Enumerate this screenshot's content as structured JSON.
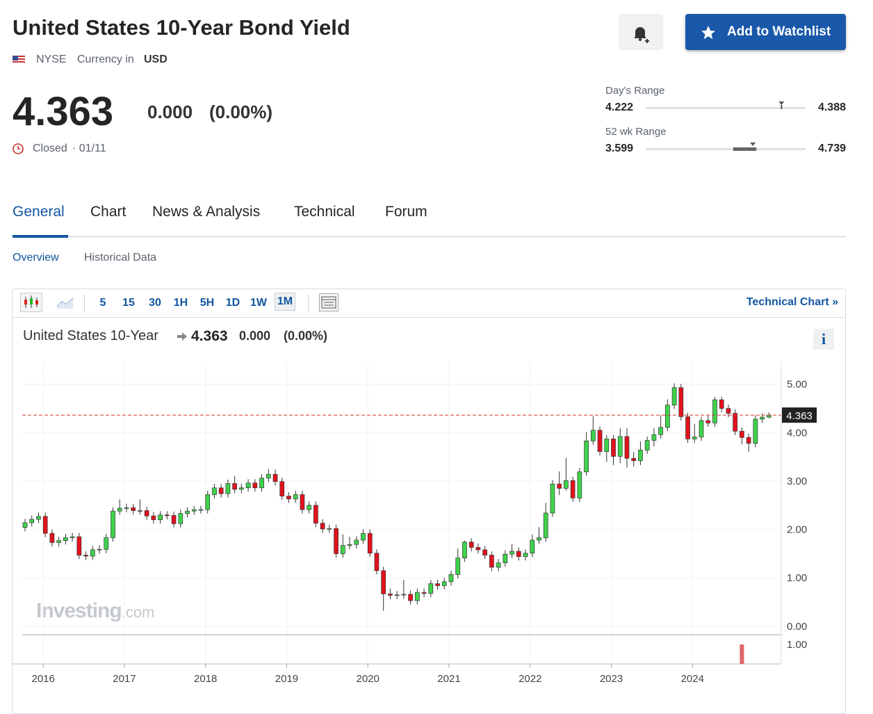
{
  "header": {
    "title": "United States 10-Year Bond Yield",
    "exchange": "NYSE",
    "currency_label": "Currency in",
    "currency": "USD"
  },
  "quote": {
    "price": 4.363,
    "change": "0.000",
    "change_pct": "(0.00%)",
    "status": "Closed",
    "date": "· 01/11",
    "days_range": {
      "label": "Day's Range",
      "low": 4.222,
      "high": 4.388
    },
    "week52_range": {
      "label": "52 wk Range",
      "low": 3.599,
      "high": 4.739
    }
  },
  "actions": {
    "watchlist": "Add to Watchlist"
  },
  "tabs": [
    "General",
    "Chart",
    "News & Analysis",
    "Technical",
    "Forum"
  ],
  "subtabs": [
    "Overview",
    "Historical Data"
  ],
  "toolbar": {
    "intervals": [
      "5",
      "15",
      "30",
      "1H",
      "5H",
      "1D",
      "1W",
      "1M"
    ],
    "link": "Technical Chart »"
  },
  "chart_legend": {
    "name": "United States 10-Year",
    "info": "i"
  },
  "watermark": {
    "brand": "Investing",
    "suffix": ".com"
  },
  "chart_data": {
    "type": "candlestick",
    "categories": [
      null,
      null,
      null,
      "2016",
      null,
      null,
      null,
      null,
      null,
      null,
      null,
      null,
      null,
      null,
      null,
      "2017",
      null,
      null,
      null,
      null,
      null,
      null,
      null,
      null,
      null,
      null,
      null,
      "2018",
      null,
      null,
      null,
      null,
      null,
      null,
      null,
      null,
      null,
      null,
      null,
      "2019",
      null,
      null,
      null,
      null,
      null,
      null,
      null,
      null,
      null,
      null,
      null,
      "2020",
      null,
      null,
      null,
      null,
      null,
      null,
      null,
      null,
      null,
      null,
      null,
      "2021",
      null,
      null,
      null,
      null,
      null,
      null,
      null,
      null,
      null,
      null,
      null,
      "2022",
      null,
      null,
      null,
      null,
      null,
      null,
      null,
      null,
      null,
      null,
      null,
      "2023",
      null,
      null,
      null,
      null,
      null,
      null,
      null,
      null,
      null,
      null,
      null,
      "2024",
      null,
      null,
      null,
      null,
      null,
      null,
      null,
      null,
      null,
      null,
      null
    ],
    "open": [
      2.04,
      2.14,
      2.21,
      2.27,
      1.92,
      1.73,
      1.77,
      1.83,
      1.85,
      1.47,
      1.45,
      1.58,
      1.59,
      1.83,
      2.38,
      2.44,
      2.45,
      2.39,
      2.39,
      2.28,
      2.2,
      2.3,
      2.29,
      2.12,
      2.33,
      2.38,
      2.41,
      2.41,
      2.72,
      2.86,
      2.74,
      2.95,
      2.83,
      2.86,
      2.96,
      2.86,
      3.06,
      3.14,
      2.99,
      2.69,
      2.63,
      2.72,
      2.41,
      2.5,
      2.13,
      2.01,
      2.02,
      1.5,
      1.67,
      1.69,
      1.78,
      1.92,
      1.51,
      1.15,
      0.67,
      0.64,
      0.65,
      0.66,
      0.53,
      0.7,
      0.68,
      0.88,
      0.84,
      0.92,
      1.07,
      1.41,
      1.74,
      1.63,
      1.58,
      1.47,
      1.22,
      1.31,
      1.49,
      1.55,
      1.44,
      1.51,
      1.78,
      1.83,
      2.34,
      2.94,
      2.85,
      3.01,
      2.65,
      3.19,
      3.83,
      4.05,
      3.61,
      3.87,
      3.51,
      3.92,
      3.47,
      3.42,
      3.64,
      3.84,
      3.96,
      4.11,
      4.57,
      4.93,
      4.33,
      3.87,
      3.91,
      4.25,
      4.2,
      4.68,
      4.5,
      4.4,
      4.03,
      3.9,
      3.78,
      4.28,
      4.32
    ],
    "high": [
      2.22,
      2.29,
      2.35,
      2.35,
      2.0,
      1.85,
      1.91,
      1.93,
      1.93,
      1.55,
      1.66,
      1.67,
      1.91,
      2.46,
      2.62,
      2.53,
      2.53,
      2.62,
      2.47,
      2.36,
      2.38,
      2.38,
      2.37,
      2.41,
      2.46,
      2.49,
      2.49,
      2.8,
      2.94,
      2.94,
      3.03,
      3.11,
      2.94,
      3.04,
      3.04,
      3.14,
      3.25,
      3.24,
      3.07,
      2.77,
      2.8,
      2.8,
      2.58,
      2.58,
      2.21,
      2.1,
      2.1,
      1.9,
      1.85,
      1.86,
      2.0,
      2.0,
      1.59,
      1.23,
      0.78,
      0.73,
      0.96,
      0.74,
      0.78,
      0.78,
      0.96,
      0.96,
      1.0,
      1.15,
      1.61,
      1.77,
      1.82,
      1.71,
      1.66,
      1.55,
      1.39,
      1.57,
      1.7,
      1.63,
      1.59,
      1.9,
      2.05,
      2.55,
      3.02,
      3.2,
      3.48,
      3.09,
      3.27,
      4.01,
      4.34,
      4.13,
      3.95,
      3.95,
      4.09,
      4.09,
      3.6,
      3.82,
      3.92,
      4.09,
      4.36,
      4.69,
      5.02,
      5.01,
      4.41,
      4.18,
      4.33,
      4.35,
      4.74,
      4.74,
      4.58,
      4.48,
      4.11,
      3.98,
      4.36,
      4.4,
      4.42
    ],
    "low": [
      1.96,
      2.06,
      2.13,
      1.84,
      1.65,
      1.65,
      1.69,
      1.75,
      1.39,
      1.37,
      1.37,
      1.5,
      1.51,
      1.75,
      2.3,
      2.36,
      2.31,
      2.31,
      2.2,
      2.12,
      2.12,
      2.21,
      2.04,
      2.04,
      2.25,
      2.3,
      2.33,
      2.33,
      2.64,
      2.66,
      2.66,
      2.75,
      2.75,
      2.78,
      2.78,
      2.78,
      2.98,
      2.91,
      2.61,
      2.55,
      2.55,
      2.33,
      2.33,
      2.05,
      1.93,
      1.93,
      1.42,
      1.42,
      1.59,
      1.61,
      1.7,
      1.43,
      1.07,
      0.32,
      0.56,
      0.56,
      0.57,
      0.45,
      0.45,
      0.6,
      0.6,
      0.76,
      0.76,
      0.84,
      0.99,
      1.33,
      1.55,
      1.5,
      1.39,
      1.14,
      1.14,
      1.23,
      1.41,
      1.36,
      1.36,
      1.43,
      1.7,
      1.75,
      2.26,
      2.71,
      2.8,
      2.57,
      2.57,
      3.11,
      3.75,
      3.53,
      3.4,
      3.33,
      3.37,
      3.28,
      3.3,
      3.33,
      3.56,
      3.72,
      3.88,
      4.03,
      4.49,
      4.25,
      3.79,
      3.79,
      3.83,
      4.12,
      4.12,
      4.42,
      4.32,
      3.95,
      3.76,
      3.6,
      3.7,
      4.2,
      4.3
    ],
    "close": [
      2.14,
      2.21,
      2.27,
      1.92,
      1.73,
      1.77,
      1.83,
      1.85,
      1.47,
      1.45,
      1.58,
      1.59,
      1.83,
      2.38,
      2.44,
      2.45,
      2.39,
      2.39,
      2.28,
      2.2,
      2.3,
      2.29,
      2.12,
      2.33,
      2.38,
      2.41,
      2.41,
      2.72,
      2.86,
      2.74,
      2.95,
      2.83,
      2.86,
      2.96,
      2.86,
      3.06,
      3.14,
      2.99,
      2.69,
      2.63,
      2.72,
      2.41,
      2.5,
      2.13,
      2.01,
      2.02,
      1.5,
      1.67,
      1.69,
      1.78,
      1.92,
      1.51,
      1.15,
      0.67,
      0.64,
      0.65,
      0.66,
      0.53,
      0.7,
      0.68,
      0.88,
      0.84,
      0.92,
      1.07,
      1.41,
      1.74,
      1.63,
      1.58,
      1.47,
      1.22,
      1.31,
      1.49,
      1.55,
      1.44,
      1.51,
      1.78,
      1.83,
      2.34,
      2.94,
      2.85,
      3.01,
      2.65,
      3.19,
      3.83,
      4.05,
      3.61,
      3.87,
      3.51,
      3.92,
      3.47,
      3.42,
      3.64,
      3.84,
      3.96,
      4.11,
      4.57,
      4.93,
      4.33,
      3.87,
      3.91,
      4.25,
      4.2,
      4.68,
      4.5,
      4.4,
      4.03,
      3.9,
      3.78,
      4.28,
      4.32,
      4.363
    ],
    "colors": {
      "up": "#3ed34a",
      "down": "#e3121d"
    },
    "ylim": [
      -0.16,
      5.47
    ],
    "yticks": [
      {
        "value": 0,
        "label": "0.00"
      },
      {
        "value": 1,
        "label": "1.00"
      },
      {
        "value": 2,
        "label": "2.00"
      },
      {
        "value": 3,
        "label": "3.00"
      },
      {
        "value": 4,
        "label": "4.00"
      },
      {
        "value": 5,
        "label": "5.00"
      }
    ],
    "grid": true,
    "last": 4.363,
    "volume": {
      "color": "#e06666",
      "ylim": [
        0,
        1.5
      ],
      "yticks": [
        {
          "value": 1,
          "label": "1.00"
        }
      ],
      "values": [
        null,
        null,
        null,
        null,
        null,
        null,
        null,
        null,
        null,
        null,
        null,
        null,
        null,
        null,
        null,
        null,
        null,
        null,
        null,
        null,
        null,
        null,
        null,
        null,
        null,
        null,
        null,
        null,
        null,
        null,
        null,
        null,
        null,
        null,
        null,
        null,
        null,
        null,
        null,
        null,
        null,
        null,
        null,
        null,
        null,
        null,
        null,
        null,
        null,
        null,
        null,
        null,
        null,
        null,
        null,
        null,
        null,
        null,
        null,
        null,
        null,
        null,
        null,
        null,
        null,
        null,
        null,
        null,
        null,
        null,
        null,
        null,
        null,
        null,
        null,
        null,
        null,
        null,
        null,
        null,
        null,
        null,
        null,
        null,
        null,
        null,
        null,
        null,
        null,
        null,
        null,
        null,
        null,
        null,
        null,
        null,
        null,
        null,
        null,
        null,
        null,
        null,
        null,
        null,
        null,
        null,
        1,
        null,
        null,
        null,
        null
      ]
    }
  }
}
